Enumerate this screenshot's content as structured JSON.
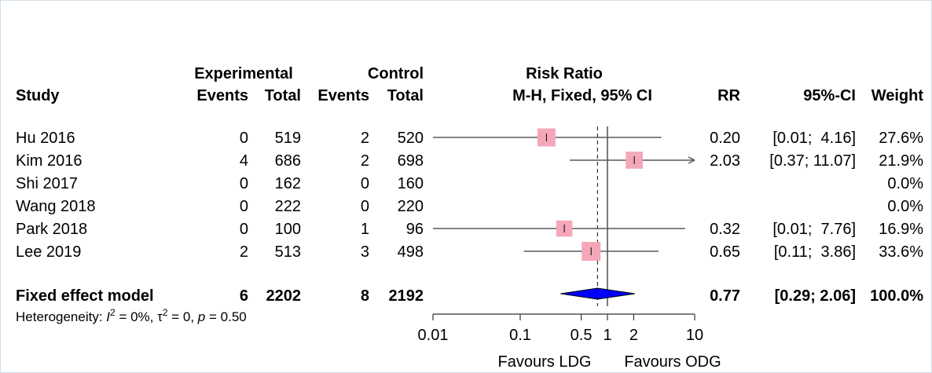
{
  "chart_data": {
    "type": "forest",
    "headers": {
      "study": "Study",
      "experimental": "Experimental",
      "control": "Control",
      "events": "Events",
      "total": "Total",
      "risk_ratio": "Risk Ratio",
      "method": "M-H, Fixed, 95% CI",
      "rr": "RR",
      "ci": "95%-CI",
      "weight": "Weight"
    },
    "studies": [
      {
        "study": "Hu 2016",
        "e_events": "0",
        "e_total": "519",
        "c_events": "2",
        "c_total": "520",
        "rr": 0.2,
        "lower": 0.01,
        "upper": 4.16,
        "rr_text": "0.20",
        "ci_text": "[0.01;  4.16]",
        "weight_text": "27.6%",
        "weight": 27.6
      },
      {
        "study": "Kim 2016",
        "e_events": "4",
        "e_total": "686",
        "c_events": "2",
        "c_total": "698",
        "rr": 2.03,
        "lower": 0.37,
        "upper": 11.07,
        "rr_text": "2.03",
        "ci_text": "[0.37; 11.07]",
        "weight_text": "21.9%",
        "weight": 21.9
      },
      {
        "study": "Shi 2017",
        "e_events": "0",
        "e_total": "162",
        "c_events": "0",
        "c_total": "160",
        "rr": null,
        "lower": null,
        "upper": null,
        "rr_text": "",
        "ci_text": "",
        "weight_text": "0.0%",
        "weight": 0.0
      },
      {
        "study": "Wang 2018",
        "e_events": "0",
        "e_total": "222",
        "c_events": "0",
        "c_total": "220",
        "rr": null,
        "lower": null,
        "upper": null,
        "rr_text": "",
        "ci_text": "",
        "weight_text": "0.0%",
        "weight": 0.0
      },
      {
        "study": "Park 2018",
        "e_events": "0",
        "e_total": "100",
        "c_events": "1",
        "c_total": "96",
        "rr": 0.32,
        "lower": 0.01,
        "upper": 7.76,
        "rr_text": "0.32",
        "ci_text": "[0.01;  7.76]",
        "weight_text": "16.9%",
        "weight": 16.9
      },
      {
        "study": "Lee 2019",
        "e_events": "2",
        "e_total": "513",
        "c_events": "3",
        "c_total": "498",
        "rr": 0.65,
        "lower": 0.11,
        "upper": 3.86,
        "rr_text": "0.65",
        "ci_text": "[0.11;  3.86]",
        "weight_text": "33.6%",
        "weight": 33.6
      }
    ],
    "pooled": {
      "label": "Fixed effect model",
      "e_events": "6",
      "e_total": "2202",
      "c_events": "8",
      "c_total": "2192",
      "rr": 0.77,
      "lower": 0.29,
      "upper": 2.06,
      "rr_text": "0.77",
      "ci_text": "[0.29;  2.06]",
      "weight_text": "100.0%"
    },
    "heterogeneity": {
      "prefix": "Heterogeneity: ",
      "i2_symbol": "I",
      "i2_sup": "2",
      "i2_value": " = 0%, ",
      "tau2": "τ",
      "tau2_sup": "2",
      "tau2_value": " = 0, ",
      "p_symbol": "p",
      "p_value": " = 0.50"
    },
    "x_axis": {
      "scale": "log",
      "range": [
        0.01,
        10
      ],
      "ticks": [
        0.01,
        0.1,
        0.5,
        1,
        2,
        10
      ],
      "tick_labels": [
        "0.01",
        "0.1",
        "0.5",
        "1",
        "2",
        "10"
      ],
      "label_left": "Favours LDG",
      "label_right": "Favours ODG"
    },
    "reference_line": 1,
    "pooled_line": 0.77,
    "colors": {
      "box": "#f4a7b9",
      "diamond": "#0000ff",
      "line": "#595959",
      "text": "#000000"
    }
  }
}
